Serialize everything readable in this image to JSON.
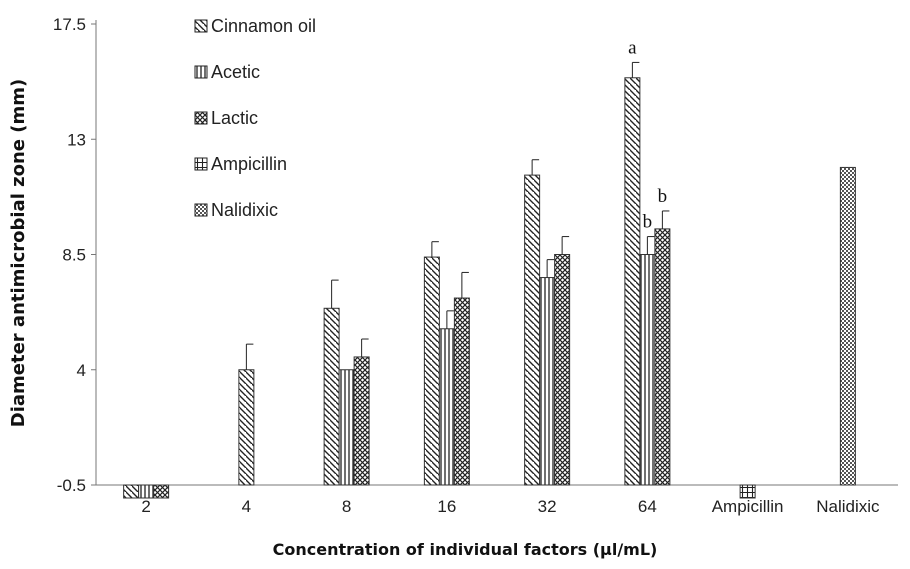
{
  "chart_data": {
    "type": "bar",
    "xlabel": "Concentration of individual factors (µl/mL)",
    "ylabel": "Diameter  antimicrobial  zone (mm)",
    "ylim": [
      -0.5,
      17.5
    ],
    "yticks": [
      -0.5,
      4,
      8.5,
      13,
      17.5
    ],
    "grid": false,
    "legend_position": "top-left",
    "categories": [
      "2",
      "4",
      "8",
      "16",
      "32",
      "64",
      "Ampicillin",
      "Nalidixic"
    ],
    "series": [
      {
        "name": "Cinnamon oil",
        "pattern": "diagonal-down",
        "color": "#333333",
        "values": [
          -0.5,
          4,
          6.4,
          8.4,
          11.6,
          15.4,
          null,
          null
        ],
        "errors": [
          0,
          1,
          1.1,
          0.6,
          0.6,
          0.6,
          null,
          null
        ]
      },
      {
        "name": "Acetic",
        "pattern": "vertical",
        "color": "#333333",
        "values": [
          -0.5,
          null,
          4,
          5.6,
          7.6,
          8.5,
          null,
          null
        ],
        "errors": [
          0,
          null,
          0,
          0.7,
          0.7,
          0.7,
          null,
          null
        ]
      },
      {
        "name": "Lactic",
        "pattern": "crosshatch",
        "color": "#333333",
        "values": [
          -0.5,
          null,
          4.5,
          6.8,
          8.5,
          9.5,
          null,
          null
        ],
        "errors": [
          0,
          null,
          0.7,
          1,
          0.7,
          0.7,
          null,
          null
        ]
      },
      {
        "name": "Ampicillin",
        "pattern": "grid",
        "color": "#333333",
        "values": [
          null,
          null,
          null,
          null,
          null,
          null,
          -0.5,
          null
        ],
        "errors": [
          null,
          null,
          null,
          null,
          null,
          null,
          0,
          null
        ]
      },
      {
        "name": "Nalidixic",
        "pattern": "dots",
        "color": "#333333",
        "values": [
          null,
          null,
          null,
          null,
          null,
          null,
          null,
          11.9
        ],
        "errors": [
          null,
          null,
          null,
          null,
          null,
          null,
          null,
          0
        ]
      }
    ],
    "annotations": [
      {
        "text": "a",
        "category": "64",
        "series": "Cinnamon oil"
      },
      {
        "text": "b",
        "category": "64",
        "series": "Acetic"
      },
      {
        "text": "b",
        "category": "64",
        "series": "Lactic"
      }
    ]
  }
}
